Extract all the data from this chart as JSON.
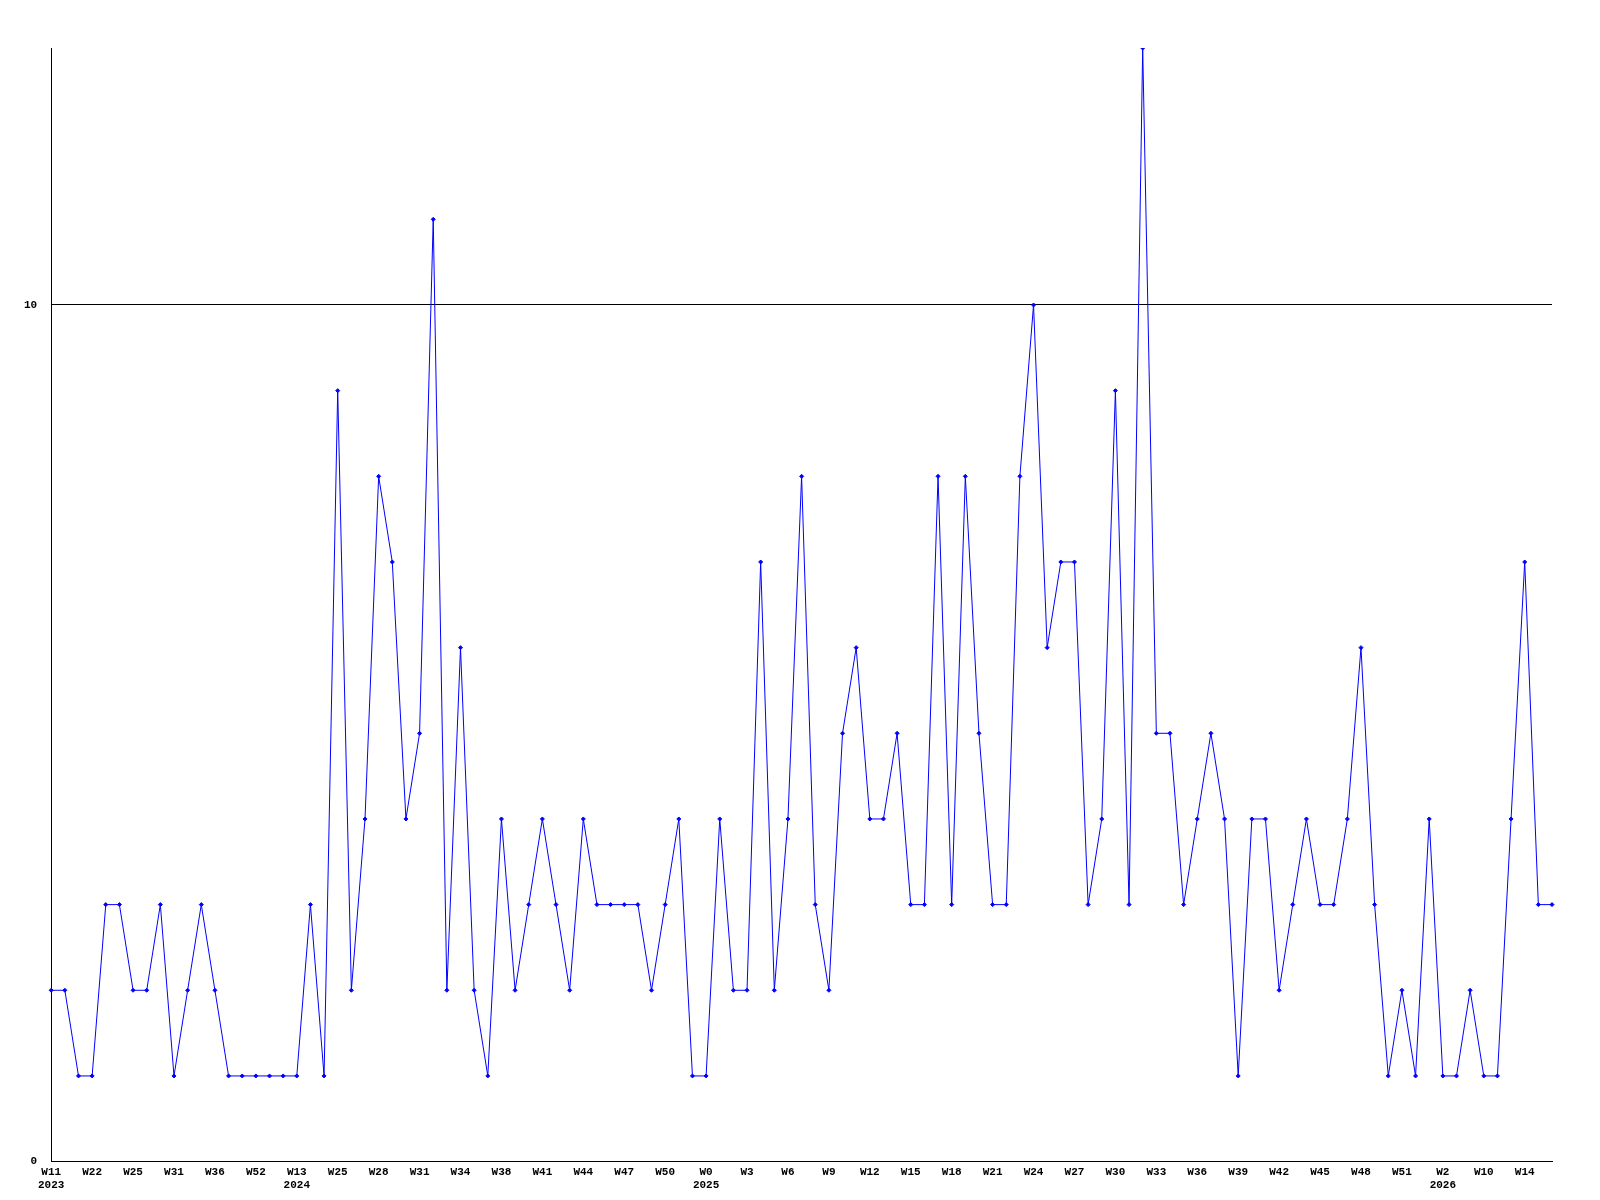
{
  "chart_data": {
    "type": "line",
    "categories": [
      "W11\n2023",
      null,
      null,
      "W22",
      null,
      null,
      "W25",
      null,
      null,
      "W31",
      null,
      null,
      "W36",
      null,
      null,
      "W52",
      null,
      null,
      "W13\n2024",
      null,
      null,
      "W25",
      null,
      null,
      "W28",
      null,
      null,
      "W31",
      null,
      null,
      "W34",
      null,
      null,
      "W38",
      null,
      null,
      "W41",
      null,
      null,
      "W44",
      null,
      null,
      "W47",
      null,
      null,
      "W50",
      null,
      null,
      "W0\n2025",
      null,
      null,
      "W3",
      null,
      null,
      "W6",
      null,
      null,
      "W9",
      null,
      null,
      "W12",
      null,
      null,
      "W15",
      null,
      null,
      "W18",
      null,
      null,
      "W21",
      null,
      null,
      "W24",
      null,
      null,
      "W27",
      null,
      null,
      "W30",
      null,
      null,
      "W33",
      null,
      null,
      "W36",
      null,
      null,
      "W39",
      null,
      null,
      "W42",
      null,
      null,
      "W45",
      null,
      null,
      "W48",
      null,
      null,
      "W51",
      null,
      null,
      "W2\n2026",
      null,
      null,
      "W10",
      null,
      null,
      "W14",
      null,
      null
    ],
    "series": [
      {
        "color": "#0000ff",
        "values": [
          2,
          2,
          1,
          1,
          3,
          3,
          2,
          2,
          3,
          1,
          2,
          3,
          2,
          1,
          1,
          1,
          1,
          1,
          1,
          3,
          1,
          9,
          2,
          4,
          8,
          7,
          4,
          5,
          11,
          2,
          6,
          2,
          1,
          4,
          2,
          3,
          4,
          3,
          2,
          4,
          3,
          3,
          3,
          3,
          2,
          3,
          4,
          1,
          1,
          4,
          2,
          2,
          7,
          2,
          4,
          8,
          3,
          2,
          5,
          6,
          4,
          4,
          5,
          3,
          3,
          8,
          3,
          8,
          5,
          3,
          3,
          8,
          10,
          6,
          7,
          7,
          3,
          4,
          9,
          3,
          13,
          5,
          5,
          3,
          4,
          5,
          4,
          1,
          4,
          4,
          2,
          3,
          4,
          3,
          3,
          4,
          6,
          3,
          1,
          2,
          1,
          4,
          1,
          1,
          2,
          1,
          1,
          4,
          7,
          3,
          3
        ]
      }
    ],
    "ylim": [
      0,
      13
    ],
    "yticks": [
      0,
      10
    ],
    "grid": "y",
    "marker": "diamond",
    "line_style": "solid"
  }
}
